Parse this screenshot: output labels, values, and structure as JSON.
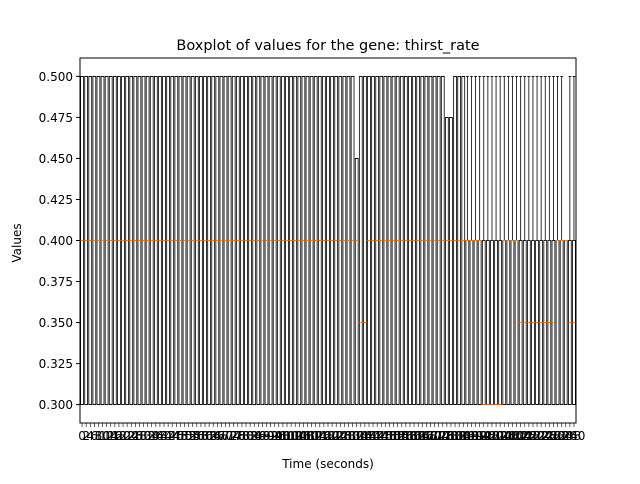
{
  "chart_data": {
    "type": "boxplot",
    "title": "Boxplot of values for the gene: thirst_rate",
    "xlabel": "Time (seconds)",
    "ylabel": "Values",
    "ylim": [
      0.2888,
      0.5112
    ],
    "yticks": [
      0.3,
      0.325,
      0.35,
      0.375,
      0.4,
      0.425,
      0.45,
      0.475,
      0.5
    ],
    "ytick_labels": [
      "0.300",
      "0.325",
      "0.350",
      "0.375",
      "0.400",
      "0.425",
      "0.450",
      "0.475",
      "0.500"
    ],
    "n_boxes": 121,
    "x_first_label": "0",
    "x_step": 2,
    "box_groups": [
      {
        "from": 0,
        "to": 66,
        "q1": 0.3,
        "median": 0.4,
        "q3": 0.5,
        "whisker_low": 0.3,
        "whisker_high": 0.5
      },
      {
        "from": 67,
        "to": 67,
        "q1": 0.3,
        "median": 0.4,
        "q3": 0.45,
        "whisker_low": 0.3,
        "whisker_high": 0.45
      },
      {
        "from": 68,
        "to": 69,
        "q1": 0.3,
        "median": 0.35,
        "q3": 0.5,
        "whisker_low": 0.3,
        "whisker_high": 0.5
      },
      {
        "from": 70,
        "to": 88,
        "q1": 0.3,
        "median": 0.4,
        "q3": 0.5,
        "whisker_low": 0.3,
        "whisker_high": 0.5
      },
      {
        "from": 89,
        "to": 90,
        "q1": 0.3,
        "median": 0.4,
        "q3": 0.475,
        "whisker_low": 0.3,
        "whisker_high": 0.475
      },
      {
        "from": 91,
        "to": 93,
        "q1": 0.3,
        "median": 0.4,
        "q3": 0.5,
        "whisker_low": 0.3,
        "whisker_high": 0.5
      },
      {
        "from": 94,
        "to": 97,
        "q1": 0.3,
        "median": 0.4,
        "q3": 0.4,
        "whisker_low": 0.3,
        "whisker_high": 0.5
      },
      {
        "from": 98,
        "to": 102,
        "q1": 0.3,
        "median": 0.3,
        "q3": 0.4,
        "whisker_low": 0.3,
        "whisker_high": 0.5
      },
      {
        "from": 103,
        "to": 106,
        "q1": 0.3,
        "median": 0.4,
        "q3": 0.4,
        "whisker_low": 0.3,
        "whisker_high": 0.5
      },
      {
        "from": 107,
        "to": 115,
        "q1": 0.3,
        "median": 0.35,
        "q3": 0.4,
        "whisker_low": 0.3,
        "whisker_high": 0.5
      },
      {
        "from": 116,
        "to": 117,
        "q1": 0.3,
        "median": 0.4,
        "q3": 0.4,
        "whisker_low": 0.3,
        "whisker_high": 0.5
      },
      {
        "from": 118,
        "to": 118,
        "q1": 0.3,
        "median": 0.4,
        "q3": 0.4,
        "whisker_low": 0.3,
        "whisker_high": 0.4
      },
      {
        "from": 119,
        "to": 120,
        "q1": 0.3,
        "median": 0.35,
        "q3": 0.4,
        "whisker_low": 0.3,
        "whisker_high": 0.5
      }
    ],
    "colors": {
      "box": "#000000",
      "median": "#ff7f0e",
      "background": "#ffffff"
    }
  }
}
